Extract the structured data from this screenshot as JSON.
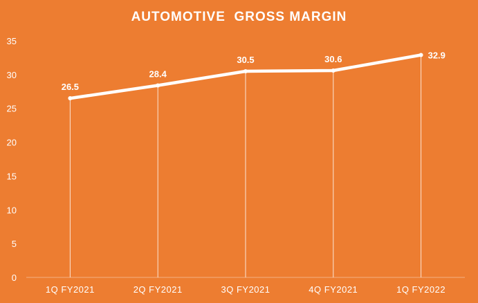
{
  "chart_data": {
    "type": "line",
    "title": "AUTOMOTIVE  GROSS MARGIN",
    "categories": [
      "1Q FY2021",
      "2Q FY2021",
      "3Q FY2021",
      "4Q FY2021",
      "1Q FY2022"
    ],
    "series": [
      {
        "values": [
          26.5,
          28.4,
          30.5,
          30.6,
          32.9
        ]
      }
    ],
    "data_labels": [
      "26.5",
      "28.4",
      "30.5",
      "30.6",
      "32.9"
    ],
    "y_ticks": [
      "0",
      "5",
      "10",
      "15",
      "20",
      "25",
      "30",
      "35"
    ],
    "ylim": [
      0,
      35
    ],
    "grid": false,
    "drop_lines": true,
    "legend": "none",
    "colors": {
      "background": "#ed7d31",
      "line": "#ffffff",
      "text": "#ffffff",
      "axis": "#f4b183"
    }
  }
}
